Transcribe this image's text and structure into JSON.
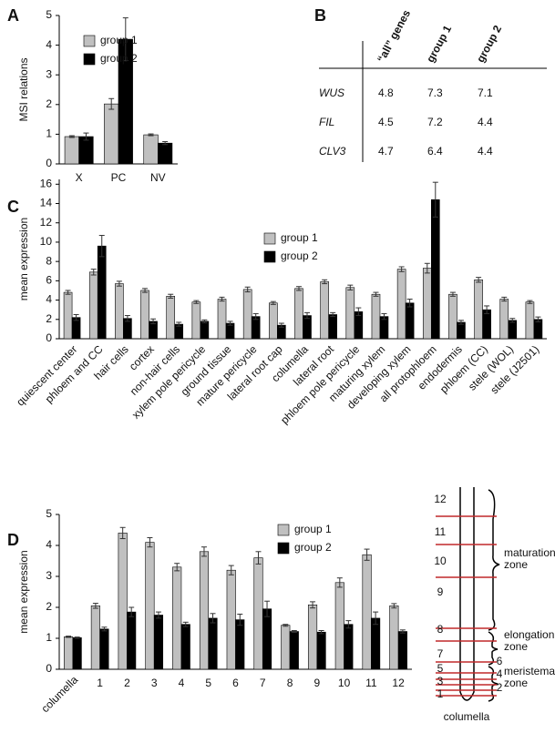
{
  "chart_data": [
    {
      "type": "bar",
      "panel": "A",
      "ylabel": "MSI relations",
      "categories": [
        "X",
        "PC",
        "NV"
      ],
      "series": [
        {
          "name": "group 1",
          "color": "#c0c0c0",
          "values": [
            0.92,
            2.02,
            0.98
          ],
          "errors": [
            0.03,
            0.18,
            0.03
          ]
        },
        {
          "name": "group 2",
          "color": "#000000",
          "values": [
            0.92,
            4.2,
            0.7
          ],
          "errors": [
            0.12,
            0.72,
            0.05
          ]
        }
      ],
      "ylim": [
        0,
        5
      ],
      "yticks": [
        0,
        1,
        2,
        3,
        4,
        5
      ]
    },
    {
      "type": "bar",
      "panel": "C",
      "ylabel": "mean expression",
      "categories": [
        "quiescent center",
        "phloem and CC",
        "hair cells",
        "cortex",
        "non-hair cells",
        "xylem pole pericycle",
        "ground tissue",
        "mature pericycle",
        "lateral root cap",
        "columella",
        "lateral root",
        "phloem pole pericycle",
        "maturing xylem",
        "developing xylem",
        "all protophloem",
        "endodermis",
        "phloem (CC)",
        "stele (WOL)",
        "stele (J2501)"
      ],
      "series": [
        {
          "name": "group 1",
          "color": "#c0c0c0",
          "values": [
            4.8,
            6.9,
            5.7,
            5.0,
            4.4,
            3.8,
            4.1,
            5.1,
            3.7,
            5.2,
            5.9,
            5.3,
            4.6,
            7.2,
            7.3,
            4.6,
            6.1,
            4.1,
            3.8
          ],
          "errors": [
            0.2,
            0.3,
            0.25,
            0.2,
            0.2,
            0.15,
            0.2,
            0.25,
            0.15,
            0.2,
            0.2,
            0.25,
            0.2,
            0.25,
            0.5,
            0.2,
            0.25,
            0.2,
            0.15
          ]
        },
        {
          "name": "group 2",
          "color": "#000000",
          "values": [
            2.2,
            9.6,
            2.1,
            1.8,
            1.5,
            1.8,
            1.6,
            2.3,
            1.4,
            2.4,
            2.5,
            2.8,
            2.3,
            3.7,
            14.4,
            1.7,
            3.0,
            1.9,
            2.0
          ],
          "errors": [
            0.3,
            1.1,
            0.3,
            0.25,
            0.2,
            0.15,
            0.2,
            0.3,
            0.2,
            0.3,
            0.2,
            0.4,
            0.3,
            0.4,
            1.8,
            0.2,
            0.4,
            0.2,
            0.25
          ]
        }
      ],
      "ylim": [
        0,
        16.5
      ],
      "yticks": [
        0,
        2,
        4,
        6,
        8,
        10,
        12,
        14,
        16
      ]
    },
    {
      "type": "bar",
      "panel": "D",
      "ylabel": "mean expression",
      "categories": [
        "columella",
        "1",
        "2",
        "3",
        "4",
        "5",
        "6",
        "7",
        "8",
        "9",
        "10",
        "11",
        "12"
      ],
      "series": [
        {
          "name": "group 1",
          "color": "#c0c0c0",
          "values": [
            1.05,
            2.05,
            4.4,
            4.1,
            3.3,
            3.8,
            3.2,
            3.6,
            1.42,
            2.08,
            2.8,
            3.7,
            2.05
          ],
          "errors": [
            0.02,
            0.08,
            0.18,
            0.15,
            0.12,
            0.15,
            0.15,
            0.2,
            0.03,
            0.1,
            0.15,
            0.18,
            0.07
          ]
        },
        {
          "name": "group 2",
          "color": "#000000",
          "values": [
            1.02,
            1.3,
            1.85,
            1.75,
            1.45,
            1.65,
            1.6,
            1.95,
            1.22,
            1.2,
            1.45,
            1.65,
            1.22
          ],
          "errors": [
            0.02,
            0.06,
            0.15,
            0.1,
            0.07,
            0.15,
            0.18,
            0.25,
            0.03,
            0.05,
            0.12,
            0.2,
            0.05
          ]
        }
      ],
      "ylim": [
        0,
        5
      ],
      "yticks": [
        0,
        1,
        2,
        3,
        4,
        5
      ]
    }
  ],
  "table": {
    "panel": "B",
    "columns": [
      "“all” genes",
      "group 1",
      "group 2"
    ],
    "rows": [
      [
        "WUS",
        4.8,
        7.3,
        7.1
      ],
      [
        "FIL",
        4.5,
        7.2,
        4.4
      ],
      [
        "CLV3",
        4.7,
        6.4,
        4.4
      ]
    ]
  },
  "diagram": {
    "segments": [
      1,
      2,
      3,
      4,
      5,
      6,
      7,
      8,
      9,
      10,
      11,
      12
    ],
    "zones": [
      [
        "maturation",
        "zone"
      ],
      [
        "elongation",
        "zone"
      ],
      [
        "meristematic",
        "zone"
      ]
    ],
    "tip": "columella"
  }
}
